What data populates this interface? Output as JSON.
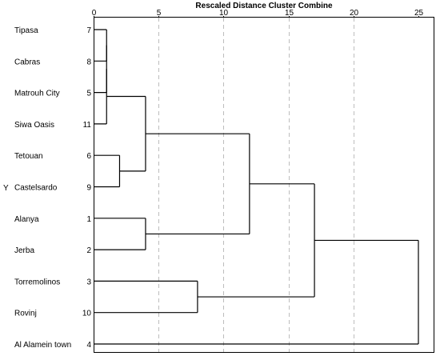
{
  "chart_data": {
    "type": "dendrogram",
    "title": "Rescaled Distance Cluster Combine",
    "ylabel": "Y",
    "xlim": [
      0,
      25
    ],
    "xticks": [
      0,
      5,
      10,
      15,
      20,
      25
    ],
    "grid": "vertical dashed",
    "leaves": [
      {
        "label": "Tipasa",
        "case": "7"
      },
      {
        "label": "Cabras",
        "case": "8"
      },
      {
        "label": "Matrouh City",
        "case": "5"
      },
      {
        "label": "Siwa Oasis",
        "case": "11"
      },
      {
        "label": "Tetouan",
        "case": "6"
      },
      {
        "label": "Castelsardo",
        "case": "9"
      },
      {
        "label": "Alanya",
        "case": "1"
      },
      {
        "label": "Jerba",
        "case": "2"
      },
      {
        "label": "Torremolinos",
        "case": "3"
      },
      {
        "label": "Rovinj",
        "case": "10"
      },
      {
        "label": "Al Alamein town",
        "case": "4"
      }
    ],
    "merges": [
      {
        "children": [
          0,
          1
        ],
        "height": 1
      },
      {
        "children": [
          11,
          2
        ],
        "height": 1
      },
      {
        "children": [
          12,
          3
        ],
        "height": 1
      },
      {
        "children": [
          4,
          5
        ],
        "height": 2
      },
      {
        "children": [
          13,
          14
        ],
        "height": 4
      },
      {
        "children": [
          6,
          7
        ],
        "height": 4
      },
      {
        "children": [
          15,
          16
        ],
        "height": 12
      },
      {
        "children": [
          8,
          9
        ],
        "height": 8
      },
      {
        "children": [
          17,
          18
        ],
        "height": 17
      },
      {
        "children": [
          19,
          10
        ],
        "height": 25
      }
    ]
  }
}
